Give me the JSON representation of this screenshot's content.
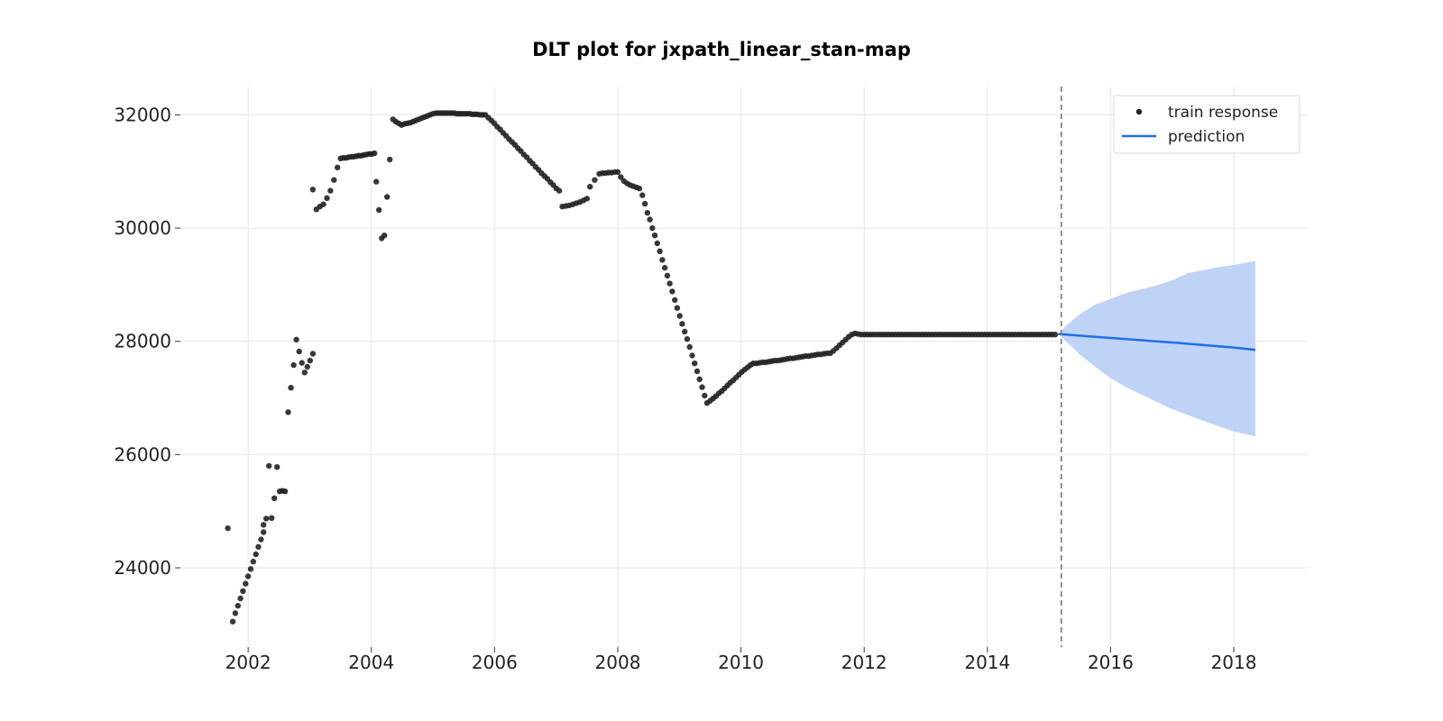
{
  "chart_data": {
    "type": "scatter",
    "title": "DLT plot for jxpath_linear_stan-map",
    "xlabel": "",
    "ylabel": "",
    "xlim": [
      2000.9,
      2019.2
    ],
    "ylim": [
      22600,
      32500
    ],
    "x_ticks": [
      2002,
      2004,
      2006,
      2008,
      2010,
      2012,
      2014,
      2016,
      2018
    ],
    "y_ticks": [
      24000,
      26000,
      28000,
      30000,
      32000
    ],
    "grid": true,
    "legend_position": "top-right",
    "training_end": 2015.2,
    "series": [
      {
        "name": "train response",
        "type": "scatter",
        "color": "#222222",
        "segments": [
          {
            "x_start": 2001.67,
            "x_end": 2001.67,
            "y_values": [
              24700
            ]
          },
          {
            "x_start": 2001.75,
            "x_end": 2002.25,
            "y_values": [
              23050,
              23200,
              23330,
              23460,
              23590,
              23720,
              23850,
              23980,
              24110,
              24240,
              24370,
              24500,
              24630
            ]
          },
          {
            "x_start": 2002.25,
            "x_end": 2002.6,
            "y_values": [
              24760,
              24870,
              25800,
              24880,
              25230,
              25780,
              25350,
              25360,
              25350
            ]
          },
          {
            "x_start": 2002.65,
            "x_end": 2003.05,
            "y_values": [
              26750,
              27180,
              27580,
              28030,
              27820,
              27620,
              27450,
              27550,
              27660,
              27780
            ]
          },
          {
            "x_start": 2003.05,
            "x_end": 2003.45,
            "y_values": [
              30680,
              30330,
              30380,
              30420,
              30530,
              30660,
              30850,
              31070
            ]
          },
          {
            "x_start": 2003.5,
            "x_end": 2004.05,
            "y_values": [
              31230,
              31240,
              31240,
              31250,
              31260,
              31260,
              31270,
              31280,
              31280,
              31290,
              31300,
              31310,
              31310,
              31320
            ]
          },
          {
            "x_start": 2004.08,
            "x_end": 2004.3,
            "y_values": [
              30820,
              30320,
              29820,
              29870,
              30550,
              31210
            ]
          },
          {
            "x_start": 2004.35,
            "x_end": 2005.0,
            "y_values": [
              31920,
              31880,
              31850,
              31820,
              31840,
              31850,
              31860,
              31880,
              31900,
              31920,
              31940,
              31960,
              31980,
              32000,
              32020
            ]
          },
          {
            "x_start": 2005.05,
            "x_end": 2005.85,
            "y_values": [
              32030,
              32030,
              32030,
              32030,
              32030,
              32030,
              32030,
              32030,
              32020,
              32020,
              32020,
              32020,
              32020,
              32020,
              32010,
              32010,
              32010,
              32000,
              32000,
              32000
            ]
          },
          {
            "x_start": 2005.9,
            "x_end": 2007.05,
            "y_values": [
              31950,
              31900,
              31850,
              31790,
              31740,
              31680,
              31630,
              31570,
              31520,
              31470,
              31410,
              31360,
              31300,
              31250,
              31190,
              31140,
              31080,
              31030,
              30970,
              30920,
              30870,
              30810,
              30760,
              30700,
              30660
            ]
          },
          {
            "x_start": 2007.1,
            "x_end": 2007.5,
            "y_values": [
              30380,
              30390,
              30400,
              30420,
              30440,
              30460,
              30490,
              30520
            ]
          },
          {
            "x_start": 2007.55,
            "x_end": 2007.7,
            "y_values": [
              30730,
              30850,
              30960
            ]
          },
          {
            "x_start": 2007.75,
            "x_end": 2008.0,
            "y_values": [
              30970,
              30970,
              30980,
              30980,
              30990,
              30990
            ]
          },
          {
            "x_start": 2008.05,
            "x_end": 2008.35,
            "y_values": [
              30900,
              30830,
              30790,
              30760,
              30740,
              30720,
              30700
            ]
          },
          {
            "x_start": 2008.4,
            "x_end": 2009.45,
            "y_values": [
              30580,
              30430,
              30270,
              30150,
              30000,
              29870,
              29730,
              29590,
              29440,
              29300,
              29160,
              29020,
              28880,
              28730,
              28590,
              28450,
              28310,
              28170,
              28040,
              27900,
              27750,
              27610,
              27470,
              27330,
              27190,
              27040,
              26910
            ]
          },
          {
            "x_start": 2009.5,
            "x_end": 2010.2,
            "y_values": [
              26950,
              26990,
              27030,
              27080,
              27120,
              27170,
              27220,
              27270,
              27310,
              27360,
              27410,
              27460,
              27500,
              27540,
              27580,
              27610
            ]
          },
          {
            "x_start": 2010.25,
            "x_end": 2011.45,
            "y_values": [
              27610,
              27620,
              27630,
              27630,
              27640,
              27650,
              27660,
              27660,
              27670,
              27680,
              27690,
              27700,
              27700,
              27710,
              27720,
              27730,
              27740,
              27740,
              27750,
              27760,
              27770,
              27770,
              27780,
              27790,
              27790
            ]
          },
          {
            "x_start": 2011.5,
            "x_end": 2011.85,
            "y_values": [
              27830,
              27880,
              27930,
              27980,
              28030,
              28080,
              28120,
              28140
            ]
          },
          {
            "x_start": 2011.9,
            "x_end": 2015.1,
            "y_values": [
              28130,
              28120,
              28120,
              28120,
              28120,
              28120,
              28120,
              28120,
              28120,
              28120,
              28120,
              28120,
              28120,
              28120,
              28120,
              28120,
              28120,
              28120,
              28120,
              28120,
              28120,
              28120,
              28120,
              28120,
              28120,
              28120,
              28120,
              28120,
              28120,
              28120,
              28120,
              28120,
              28120,
              28120,
              28120,
              28120,
              28120,
              28120,
              28120,
              28120,
              28120,
              28120,
              28120,
              28120,
              28120,
              28120,
              28120,
              28120,
              28120,
              28120,
              28120,
              28120,
              28120,
              28120,
              28120,
              28120,
              28120,
              28120,
              28120,
              28120,
              28120,
              28120,
              28120,
              28120,
              28120
            ]
          }
        ]
      },
      {
        "name": "prediction",
        "type": "line",
        "color": "#1f6fe8",
        "x": [
          2015.15,
          2016.0,
          2017.0,
          2018.0,
          2018.35
        ],
        "y": [
          28130,
          28060,
          27980,
          27890,
          27850
        ],
        "band": {
          "color": "#bcd1f7",
          "x": [
            2015.15,
            2015.3,
            2015.5,
            2015.75,
            2016.0,
            2016.25,
            2016.5,
            2016.75,
            2017.0,
            2017.25,
            2017.5,
            2017.75,
            2018.0,
            2018.35
          ],
          "upper": [
            28130,
            28300,
            28480,
            28650,
            28750,
            28850,
            28920,
            28990,
            29080,
            29200,
            29260,
            29310,
            29350,
            29420
          ],
          "lower": [
            28130,
            27980,
            27770,
            27550,
            27350,
            27190,
            27060,
            26930,
            26800,
            26700,
            26600,
            26500,
            26410,
            26320
          ]
        }
      }
    ]
  }
}
